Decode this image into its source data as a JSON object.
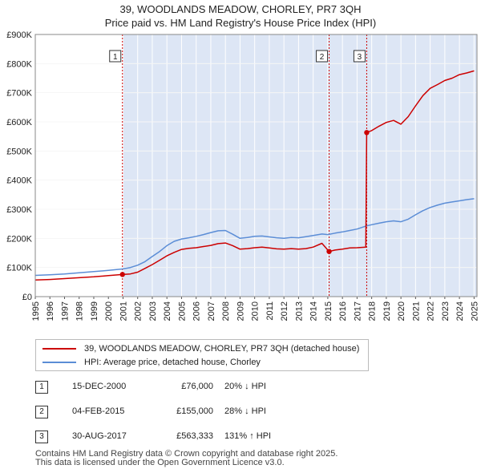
{
  "title_line1": "39, WOODLANDS MEADOW, CHORLEY, PR7 3QH",
  "title_line2": "Price paid vs. HM Land Registry's House Price Index (HPI)",
  "colors": {
    "property": "#cc0000",
    "hpi": "#5b8dd6",
    "shade": "#dde6f5",
    "marker_line": "#cc0000"
  },
  "chart_data": {
    "type": "line",
    "ylim": [
      0,
      900000
    ],
    "xlim": [
      1995.0,
      2025.2
    ],
    "y_tick_values": [
      0,
      100000,
      200000,
      300000,
      400000,
      500000,
      600000,
      700000,
      800000,
      900000
    ],
    "y_tick_labels": [
      "£0",
      "£100K",
      "£200K",
      "£300K",
      "£400K",
      "£500K",
      "£600K",
      "£700K",
      "£800K",
      "£900K"
    ],
    "x_tick_labels": [
      "1995",
      "1996",
      "1997",
      "1998",
      "1999",
      "2000",
      "2001",
      "2002",
      "2003",
      "2004",
      "2005",
      "2006",
      "2007",
      "2008",
      "2009",
      "2010",
      "2011",
      "2012",
      "2013",
      "2014",
      "2015",
      "2016",
      "2017",
      "2018",
      "2019",
      "2020",
      "2021",
      "2022",
      "2023",
      "2024",
      "2025"
    ],
    "shaded_from": 2000.96,
    "series": [
      {
        "name": "39, WOODLANDS MEADOW, CHORLEY, PR7 3QH (detached house)",
        "color": "#cc0000",
        "points": [
          [
            1995.0,
            57000
          ],
          [
            1996.0,
            59000
          ],
          [
            1997.0,
            62000
          ],
          [
            1998.0,
            65000
          ],
          [
            1999.0,
            68000
          ],
          [
            2000.0,
            72000
          ],
          [
            2000.96,
            76000
          ],
          [
            2001.5,
            78000
          ],
          [
            2002.0,
            84000
          ],
          [
            2002.5,
            97000
          ],
          [
            2003.0,
            110000
          ],
          [
            2003.5,
            125000
          ],
          [
            2004.0,
            140000
          ],
          [
            2004.5,
            152000
          ],
          [
            2005.0,
            162000
          ],
          [
            2005.5,
            166000
          ],
          [
            2006.0,
            168000
          ],
          [
            2006.5,
            172000
          ],
          [
            2007.0,
            176000
          ],
          [
            2007.5,
            182000
          ],
          [
            2008.0,
            184000
          ],
          [
            2008.5,
            175000
          ],
          [
            2009.0,
            163000
          ],
          [
            2009.5,
            165000
          ],
          [
            2010.0,
            168000
          ],
          [
            2010.5,
            170000
          ],
          [
            2011.0,
            167000
          ],
          [
            2011.5,
            164000
          ],
          [
            2012.0,
            163000
          ],
          [
            2012.5,
            165000
          ],
          [
            2013.0,
            163000
          ],
          [
            2013.5,
            165000
          ],
          [
            2014.0,
            170000
          ],
          [
            2014.6,
            183000
          ],
          [
            2015.09,
            155000
          ],
          [
            2015.5,
            160000
          ],
          [
            2016.0,
            163000
          ],
          [
            2016.5,
            167000
          ],
          [
            2017.0,
            168000
          ],
          [
            2017.6,
            170000
          ],
          [
            2017.66,
            563333
          ],
          [
            2018.0,
            570000
          ],
          [
            2018.5,
            585000
          ],
          [
            2019.0,
            598000
          ],
          [
            2019.5,
            605000
          ],
          [
            2020.0,
            592000
          ],
          [
            2020.5,
            618000
          ],
          [
            2021.0,
            655000
          ],
          [
            2021.5,
            690000
          ],
          [
            2022.0,
            715000
          ],
          [
            2022.5,
            728000
          ],
          [
            2023.0,
            742000
          ],
          [
            2023.5,
            750000
          ],
          [
            2024.0,
            762000
          ],
          [
            2024.5,
            768000
          ],
          [
            2025.0,
            775000
          ]
        ]
      },
      {
        "name": "HPI: Average price, detached house, Chorley",
        "color": "#5b8dd6",
        "points": [
          [
            1995.0,
            73000
          ],
          [
            1996.0,
            75000
          ],
          [
            1997.0,
            78000
          ],
          [
            1998.0,
            82000
          ],
          [
            1999.0,
            86000
          ],
          [
            2000.0,
            90000
          ],
          [
            2000.96,
            95000
          ],
          [
            2001.5,
            100000
          ],
          [
            2002.0,
            108000
          ],
          [
            2002.5,
            120000
          ],
          [
            2003.0,
            138000
          ],
          [
            2003.5,
            155000
          ],
          [
            2004.0,
            175000
          ],
          [
            2004.5,
            190000
          ],
          [
            2005.0,
            198000
          ],
          [
            2005.5,
            202000
          ],
          [
            2006.0,
            207000
          ],
          [
            2006.5,
            213000
          ],
          [
            2007.0,
            220000
          ],
          [
            2007.5,
            226000
          ],
          [
            2008.0,
            227000
          ],
          [
            2008.5,
            214000
          ],
          [
            2009.0,
            200000
          ],
          [
            2009.5,
            203000
          ],
          [
            2010.0,
            207000
          ],
          [
            2010.5,
            208000
          ],
          [
            2011.0,
            205000
          ],
          [
            2011.5,
            202000
          ],
          [
            2012.0,
            200000
          ],
          [
            2012.5,
            203000
          ],
          [
            2013.0,
            202000
          ],
          [
            2013.5,
            206000
          ],
          [
            2014.0,
            210000
          ],
          [
            2014.6,
            215000
          ],
          [
            2015.0,
            213000
          ],
          [
            2015.5,
            218000
          ],
          [
            2016.0,
            222000
          ],
          [
            2016.5,
            227000
          ],
          [
            2017.0,
            232000
          ],
          [
            2017.66,
            243000
          ],
          [
            2018.0,
            247000
          ],
          [
            2018.5,
            252000
          ],
          [
            2019.0,
            257000
          ],
          [
            2019.5,
            260000
          ],
          [
            2020.0,
            257000
          ],
          [
            2020.5,
            266000
          ],
          [
            2021.0,
            281000
          ],
          [
            2021.5,
            295000
          ],
          [
            2022.0,
            306000
          ],
          [
            2022.5,
            314000
          ],
          [
            2023.0,
            321000
          ],
          [
            2023.5,
            325000
          ],
          [
            2024.0,
            329000
          ],
          [
            2024.5,
            333000
          ],
          [
            2025.0,
            336000
          ]
        ]
      }
    ],
    "markers": [
      {
        "label": "1",
        "x": 2000.96,
        "y": 76000
      },
      {
        "label": "2",
        "x": 2015.09,
        "y": 155000
      },
      {
        "label": "3",
        "x": 2017.66,
        "y": 563333
      }
    ]
  },
  "legend": {
    "property": "39, WOODLANDS MEADOW, CHORLEY, PR7 3QH (detached house)",
    "hpi": "HPI: Average price, detached house, Chorley"
  },
  "transactions": [
    {
      "num": "1",
      "date": "15-DEC-2000",
      "price": "£76,000",
      "hpi": "20% ↓ HPI"
    },
    {
      "num": "2",
      "date": "04-FEB-2015",
      "price": "£155,000",
      "hpi": "28% ↓ HPI"
    },
    {
      "num": "3",
      "date": "30-AUG-2017",
      "price": "£563,333",
      "hpi": "131% ↑ HPI"
    }
  ],
  "footer": {
    "line1": "Contains HM Land Registry data © Crown copyright and database right 2025.",
    "line2": "This data is licensed under the Open Government Licence v3.0."
  }
}
